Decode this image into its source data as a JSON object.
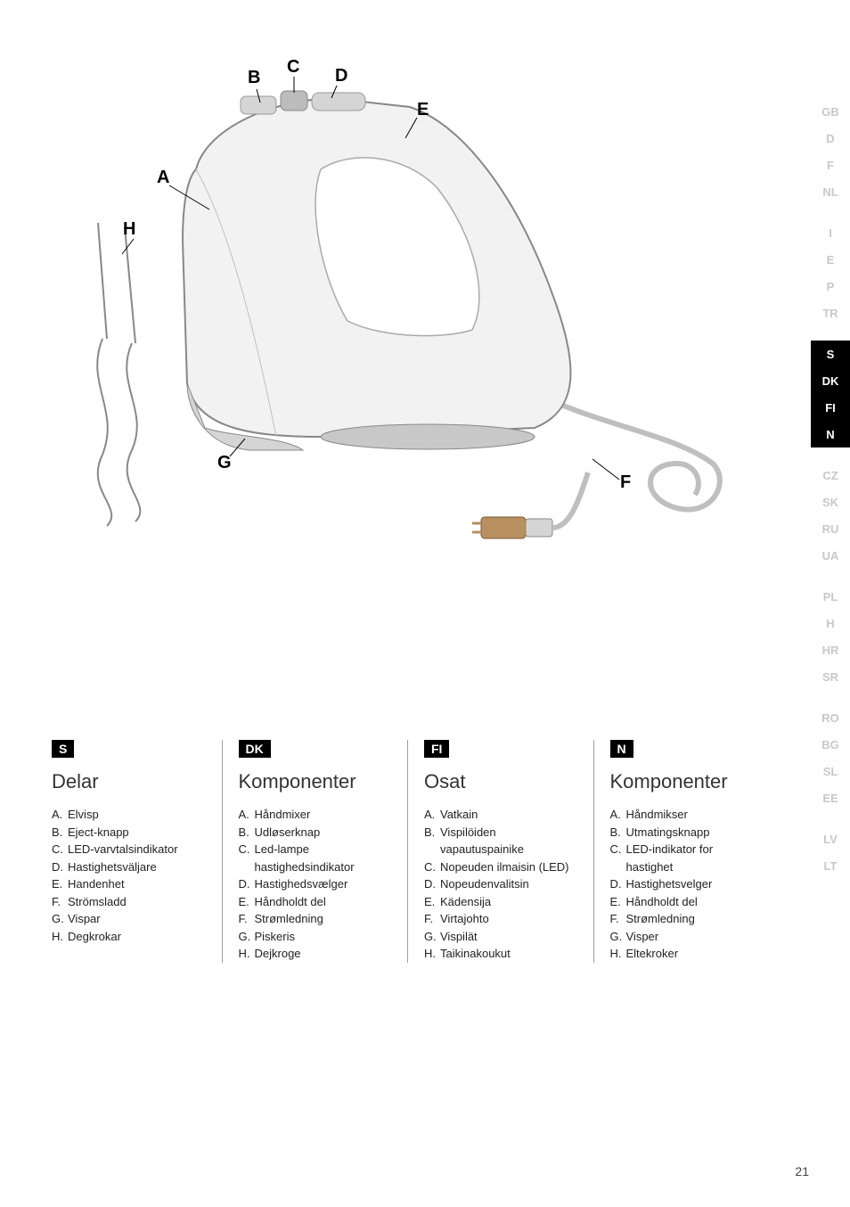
{
  "diagram_labels": {
    "A": "A",
    "B": "B",
    "C": "C",
    "D": "D",
    "E": "E",
    "F": "F",
    "G": "G",
    "H": "H"
  },
  "lang_tabs": [
    {
      "code": "GB",
      "active": false
    },
    {
      "code": "D",
      "active": false
    },
    {
      "code": "F",
      "active": false
    },
    {
      "code": "NL",
      "active": false
    },
    {
      "code": "I",
      "active": false,
      "sep": true
    },
    {
      "code": "E",
      "active": false
    },
    {
      "code": "P",
      "active": false
    },
    {
      "code": "TR",
      "active": false
    },
    {
      "code": "S",
      "active": true,
      "sep": true
    },
    {
      "code": "DK",
      "active": true
    },
    {
      "code": "FI",
      "active": true
    },
    {
      "code": "N",
      "active": true
    },
    {
      "code": "CZ",
      "active": false,
      "sep": true
    },
    {
      "code": "SK",
      "active": false
    },
    {
      "code": "RU",
      "active": false
    },
    {
      "code": "UA",
      "active": false
    },
    {
      "code": "PL",
      "active": false,
      "sep": true
    },
    {
      "code": "H",
      "active": false
    },
    {
      "code": "HR",
      "active": false
    },
    {
      "code": "SR",
      "active": false
    },
    {
      "code": "RO",
      "active": false,
      "sep": true
    },
    {
      "code": "BG",
      "active": false
    },
    {
      "code": "SL",
      "active": false
    },
    {
      "code": "EE",
      "active": false
    },
    {
      "code": "LV",
      "active": false,
      "sep": true
    },
    {
      "code": "LT",
      "active": false
    }
  ],
  "columns": [
    {
      "badge": "S",
      "title": "Delar",
      "items": [
        {
          "l": "A.",
          "t": "Elvisp"
        },
        {
          "l": "B.",
          "t": "Eject-knapp"
        },
        {
          "l": "C.",
          "t": "LED-varvtalsindikator"
        },
        {
          "l": "D.",
          "t": "Hastighetsväljare"
        },
        {
          "l": "E.",
          "t": "Handenhet"
        },
        {
          "l": "F.",
          "t": "Strömsladd"
        },
        {
          "l": "G.",
          "t": "Vispar"
        },
        {
          "l": "H.",
          "t": "Degkrokar"
        }
      ]
    },
    {
      "badge": "DK",
      "title": "Komponenter",
      "items": [
        {
          "l": "A.",
          "t": "Håndmixer"
        },
        {
          "l": "B.",
          "t": "Udløserknap"
        },
        {
          "l": "C.",
          "t": "Led-lampe hastighedsindikator"
        },
        {
          "l": "D.",
          "t": "Hastighedsvælger"
        },
        {
          "l": "E.",
          "t": "Håndholdt del"
        },
        {
          "l": "F.",
          "t": "Strømledning"
        },
        {
          "l": "G.",
          "t": "Piskeris"
        },
        {
          "l": "H.",
          "t": "Dejkroge"
        }
      ]
    },
    {
      "badge": "FI",
      "title": "Osat",
      "items": [
        {
          "l": "A.",
          "t": "Vatkain"
        },
        {
          "l": "B.",
          "t": "Vispilöiden vapautuspainike"
        },
        {
          "l": "C.",
          "t": "Nopeuden ilmaisin (LED)"
        },
        {
          "l": "D.",
          "t": "Nopeudenvalitsin"
        },
        {
          "l": "E.",
          "t": "Kädensija"
        },
        {
          "l": "F.",
          "t": "Virtajohto"
        },
        {
          "l": "G.",
          "t": "Vispilät"
        },
        {
          "l": "H.",
          "t": "Taikinakoukut"
        }
      ]
    },
    {
      "badge": "N",
      "title": "Komponenter",
      "items": [
        {
          "l": "A.",
          "t": "Håndmikser"
        },
        {
          "l": "B.",
          "t": "Utmatingsknapp"
        },
        {
          "l": "C.",
          "t": "LED-indikator for hastighet"
        },
        {
          "l": "D.",
          "t": "Hastighetsvelger"
        },
        {
          "l": "E.",
          "t": "Håndholdt del"
        },
        {
          "l": "F.",
          "t": "Strømledning"
        },
        {
          "l": "G.",
          "t": "Visper"
        },
        {
          "l": "H.",
          "t": "Eltekroker"
        }
      ]
    }
  ],
  "page_number": "21",
  "colors": {
    "mixer_body_light": "#f2f2f2",
    "mixer_body_shade": "#d5d5d5",
    "mixer_dark": "#8a8a8a",
    "outline": "#333333",
    "cord": "#bfbfbf",
    "plug": "#b89060"
  }
}
